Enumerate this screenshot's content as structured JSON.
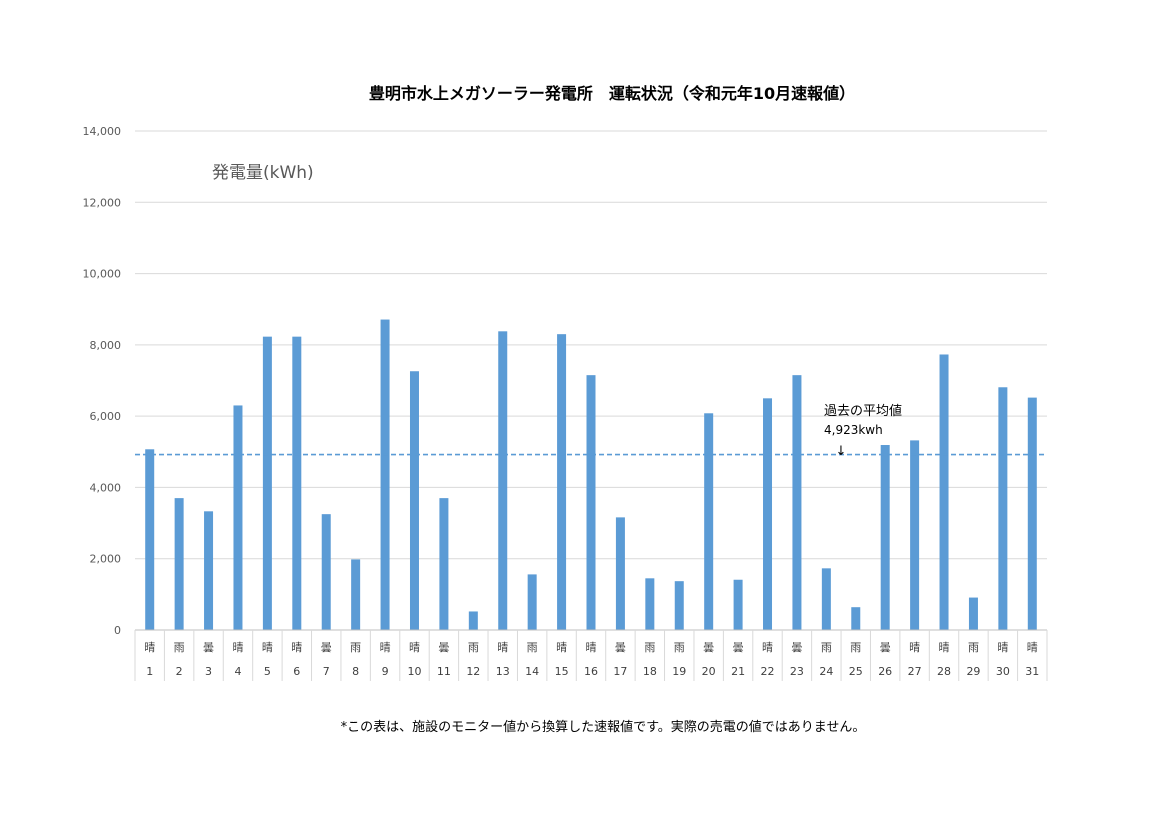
{
  "chart_data": {
    "type": "bar",
    "title": "豊明市水上メガソーラー発電所　運転状況（令和元年10月速報値）",
    "ylabel": "発電量(kWh)",
    "ylim": [
      0,
      14000
    ],
    "yticks": [
      0,
      2000,
      4000,
      6000,
      8000,
      10000,
      12000,
      14000
    ],
    "ytick_labels": [
      "0",
      "2,000",
      "4,000",
      "6,000",
      "8,000",
      "10,000",
      "12,000",
      "14,000"
    ],
    "grid": true,
    "bar_color": "#5b9bd5",
    "categories": [
      "1",
      "2",
      "3",
      "4",
      "5",
      "6",
      "7",
      "8",
      "9",
      "10",
      "11",
      "12",
      "13",
      "14",
      "15",
      "16",
      "17",
      "18",
      "19",
      "20",
      "21",
      "22",
      "23",
      "24",
      "25",
      "26",
      "27",
      "28",
      "29",
      "30",
      "31"
    ],
    "weather": [
      "晴",
      "雨",
      "曇",
      "晴",
      "晴",
      "晴",
      "曇",
      "雨",
      "晴",
      "晴",
      "曇",
      "雨",
      "晴",
      "雨",
      "晴",
      "晴",
      "曇",
      "雨",
      "雨",
      "曇",
      "曇",
      "晴",
      "曇",
      "雨",
      "雨",
      "曇",
      "晴",
      "晴",
      "雨",
      "晴",
      "晴"
    ],
    "values": [
      5070,
      3700,
      3330,
      6300,
      8230,
      8230,
      3250,
      1980,
      8710,
      7260,
      3700,
      520,
      8380,
      1560,
      8300,
      7150,
      3160,
      1450,
      1370,
      6080,
      1410,
      6500,
      7150,
      1730,
      640,
      5190,
      5320,
      7730,
      910,
      6810,
      6520
    ],
    "reference_line": {
      "value": 4923,
      "label_line1": "過去の平均値",
      "label_line2": "4,923kwh",
      "arrow": "↓",
      "color": "#5b9bd5"
    },
    "footnote": "*この表は、施設のモニター値から換算した速報値です。実際の売電の値ではありません。"
  }
}
